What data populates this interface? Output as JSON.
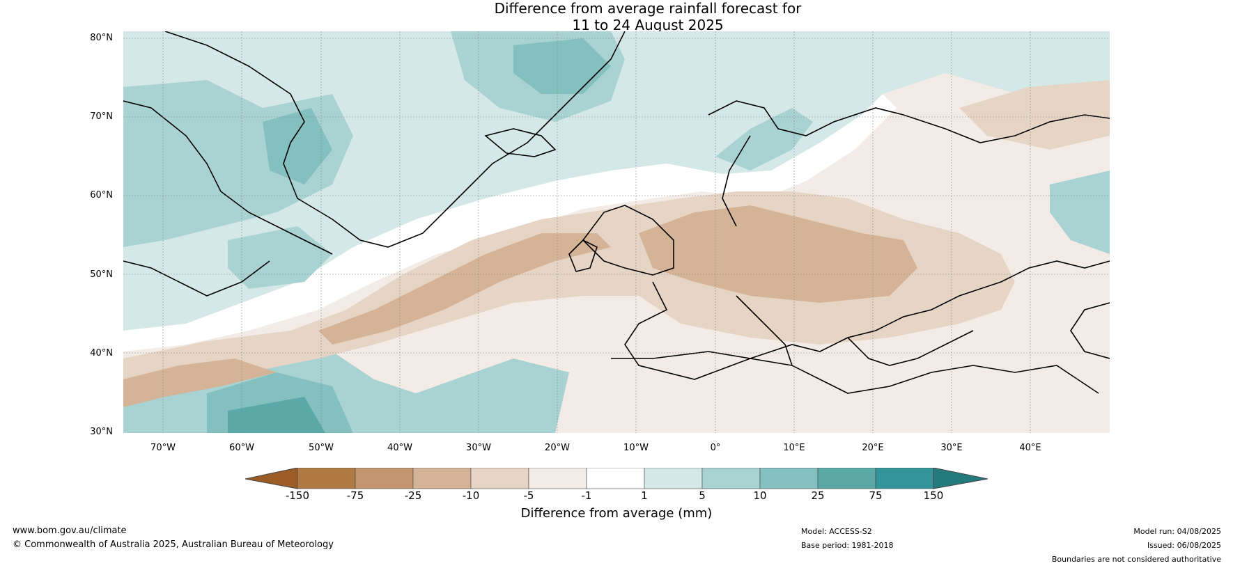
{
  "title_line1": "Difference from average rainfall forecast for",
  "title_line2": "11 to 24 August 2025",
  "lat_labels": [
    "80°N",
    "70°N",
    "60°N",
    "50°N",
    "40°N",
    "30°N"
  ],
  "lon_labels": [
    "70°W",
    "60°W",
    "50°W",
    "40°W",
    "30°W",
    "20°W",
    "10°W",
    "0°",
    "10°E",
    "20°E",
    "30°E",
    "40°E"
  ],
  "colorbar": {
    "ticks": [
      "-150",
      "-75",
      "-25",
      "-10",
      "-5",
      "-1",
      "1",
      "5",
      "10",
      "25",
      "75",
      "150"
    ],
    "colors": [
      "#9c5c25",
      "#b07a45",
      "#c39670",
      "#d4b396",
      "#e6d4c4",
      "#f3ece6",
      "#ffffff",
      "#d4e8e7",
      "#a8d3d2",
      "#84c0bf",
      "#5aa9a8",
      "#33949a",
      "#237a7d"
    ],
    "title": "Difference from average (mm)"
  },
  "footer": {
    "url": "www.bom.gov.au/climate",
    "copyright": "© Commonwealth of Australia 2025, Australian Bureau of Meteorology",
    "model": "Model: ACCESS-S2",
    "base_period": "Base period: 1981-2018",
    "model_run": "Model run: 04/08/2025",
    "issued": "Issued: 06/08/2025",
    "disclaimer": "Boundaries are not considered authoritative"
  }
}
